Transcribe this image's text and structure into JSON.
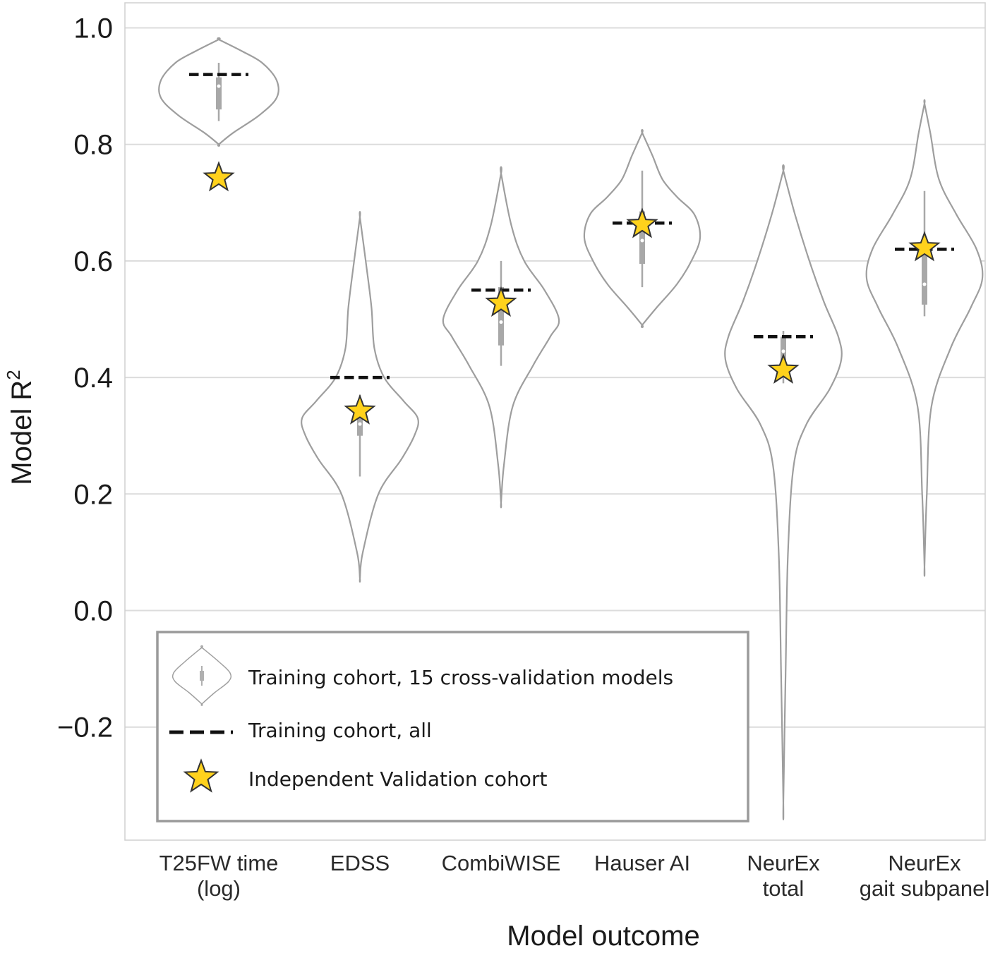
{
  "chart_data": {
    "type": "violin",
    "xlabel": "Model outcome",
    "ylabel": "Model R",
    "ylabel_superscript": "2",
    "ylim": [
      -0.4,
      1.04
    ],
    "yticks": [
      1.0,
      0.8,
      0.6,
      0.4,
      0.2,
      0.0,
      -0.2
    ],
    "ytick_labels": [
      "1.0",
      "0.8",
      "0.6",
      "0.4",
      "0.2",
      "0.0",
      "−0.2"
    ],
    "grid": true,
    "colors": {
      "violin_edge": "#9e9e9e",
      "box": "#a8a8a8",
      "dash": "#111111",
      "star_fill": "#ffd21c",
      "star_edge": "#333333",
      "grid": "#dcdcdc",
      "legend_border": "#9a9a9a"
    },
    "categories": [
      {
        "label_lines": [
          "T25FW time",
          "(log)"
        ],
        "training_all": 0.92,
        "validation": 0.745,
        "violin": {
          "min": 0.8,
          "max": 0.98,
          "q1": 0.86,
          "q3": 0.915,
          "median": 0.9,
          "whisker_low": 0.84,
          "whisker_high": 0.94,
          "profile": [
            [
              0.8,
              0.0
            ],
            [
              0.82,
              0.25
            ],
            [
              0.85,
              0.7
            ],
            [
              0.88,
              1.0
            ],
            [
              0.91,
              1.0
            ],
            [
              0.94,
              0.75
            ],
            [
              0.96,
              0.4
            ],
            [
              0.98,
              0.0
            ]
          ]
        }
      },
      {
        "label_lines": [
          "EDSS"
        ],
        "training_all": 0.4,
        "validation": 0.345,
        "violin": {
          "min": 0.055,
          "max": 0.675,
          "q1": 0.3,
          "q3": 0.36,
          "median": 0.32,
          "whisker_low": 0.23,
          "whisker_high": 0.37,
          "profile": [
            [
              0.055,
              0.0
            ],
            [
              0.1,
              0.05
            ],
            [
              0.2,
              0.32
            ],
            [
              0.26,
              0.72
            ],
            [
              0.3,
              0.94
            ],
            [
              0.33,
              1.0
            ],
            [
              0.36,
              0.75
            ],
            [
              0.4,
              0.42
            ],
            [
              0.45,
              0.25
            ],
            [
              0.52,
              0.2
            ],
            [
              0.6,
              0.1
            ],
            [
              0.675,
              0.0
            ]
          ]
        }
      },
      {
        "label_lines": [
          "CombiWISE"
        ],
        "training_all": 0.55,
        "validation": 0.53,
        "violin": {
          "min": 0.185,
          "max": 0.75,
          "q1": 0.455,
          "q3": 0.555,
          "median": 0.495,
          "whisker_low": 0.42,
          "whisker_high": 0.6,
          "profile": [
            [
              0.185,
              0.0
            ],
            [
              0.25,
              0.05
            ],
            [
              0.35,
              0.2
            ],
            [
              0.42,
              0.55
            ],
            [
              0.47,
              0.85
            ],
            [
              0.5,
              1.0
            ],
            [
              0.55,
              0.75
            ],
            [
              0.6,
              0.4
            ],
            [
              0.66,
              0.18
            ],
            [
              0.75,
              0.0
            ]
          ]
        }
      },
      {
        "label_lines": [
          "Hauser AI"
        ],
        "training_all": 0.665,
        "validation": 0.665,
        "violin": {
          "min": 0.49,
          "max": 0.82,
          "q1": 0.595,
          "q3": 0.685,
          "median": 0.635,
          "whisker_low": 0.555,
          "whisker_high": 0.755,
          "profile": [
            [
              0.49,
              0.0
            ],
            [
              0.52,
              0.25
            ],
            [
              0.56,
              0.6
            ],
            [
              0.6,
              0.85
            ],
            [
              0.64,
              1.0
            ],
            [
              0.68,
              0.9
            ],
            [
              0.71,
              0.6
            ],
            [
              0.74,
              0.35
            ],
            [
              0.78,
              0.18
            ],
            [
              0.82,
              0.0
            ]
          ]
        }
      },
      {
        "label_lines": [
          "NeurEx",
          "total"
        ],
        "training_all": 0.47,
        "validation": 0.415,
        "violin": {
          "min": -0.33,
          "max": 0.755,
          "q1": 0.425,
          "q3": 0.47,
          "median": 0.445,
          "whisker_low": 0.39,
          "whisker_high": 0.48,
          "profile": [
            [
              -0.33,
              0.0
            ],
            [
              -0.1,
              0.04
            ],
            [
              0.1,
              0.08
            ],
            [
              0.25,
              0.18
            ],
            [
              0.32,
              0.4
            ],
            [
              0.38,
              0.8
            ],
            [
              0.43,
              1.0
            ],
            [
              0.47,
              0.95
            ],
            [
              0.53,
              0.7
            ],
            [
              0.6,
              0.45
            ],
            [
              0.68,
              0.2
            ],
            [
              0.755,
              0.0
            ]
          ]
        }
      },
      {
        "label_lines": [
          "NeurEx",
          "gait subpanel"
        ],
        "training_all": 0.62,
        "validation": 0.625,
        "violin": {
          "min": 0.075,
          "max": 0.87,
          "q1": 0.525,
          "q3": 0.62,
          "median": 0.56,
          "whisker_low": 0.505,
          "whisker_high": 0.72,
          "profile": [
            [
              0.075,
              0.0
            ],
            [
              0.2,
              0.04
            ],
            [
              0.35,
              0.12
            ],
            [
              0.45,
              0.45
            ],
            [
              0.52,
              0.8
            ],
            [
              0.57,
              1.0
            ],
            [
              0.62,
              0.9
            ],
            [
              0.68,
              0.55
            ],
            [
              0.74,
              0.25
            ],
            [
              0.82,
              0.1
            ],
            [
              0.87,
              0.0
            ]
          ]
        }
      }
    ],
    "legend": {
      "placement": "lower-left",
      "entries": [
        {
          "marker": "violin",
          "label": "Training cohort, 15 cross-validation models"
        },
        {
          "marker": "dashed-line",
          "label": "Training cohort, all"
        },
        {
          "marker": "star",
          "label": "Independent Validation cohort"
        }
      ]
    }
  }
}
